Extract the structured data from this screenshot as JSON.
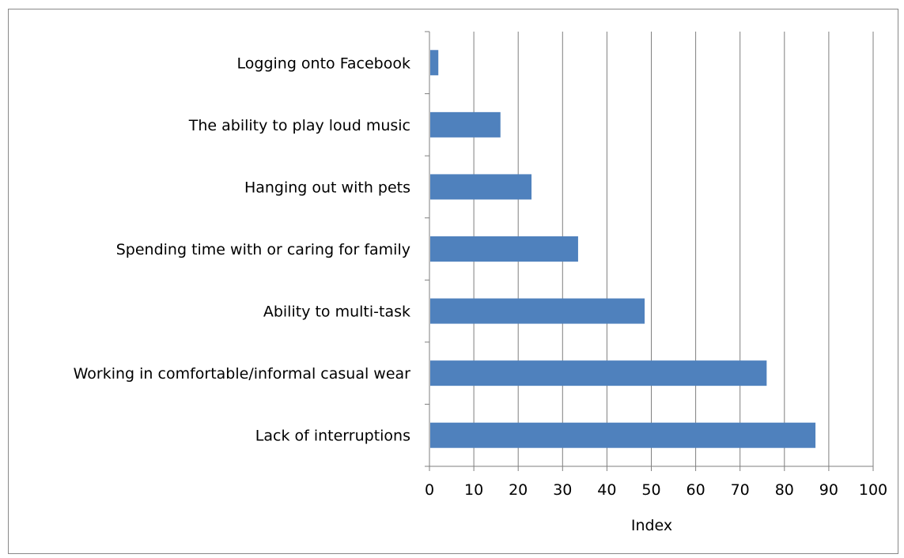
{
  "chart_data": {
    "type": "bar",
    "orientation": "horizontal",
    "categories": [
      "Logging onto Facebook",
      "The ability to play loud music",
      "Hanging out with pets",
      "Spending time with or caring for family",
      "Ability to multi-task",
      "Working in comfortable/informal casual wear",
      "Lack of interruptions"
    ],
    "values": [
      2,
      16,
      23,
      33.5,
      48.5,
      76,
      87
    ],
    "xlabel": "Index",
    "xlim": [
      0,
      100
    ],
    "xticks": [
      "0",
      "10",
      "20",
      "30",
      "40",
      "50",
      "60",
      "70",
      "80",
      "90",
      "100"
    ],
    "grid": "vertical",
    "legend": "none",
    "bar_color": "#4f81bd"
  }
}
